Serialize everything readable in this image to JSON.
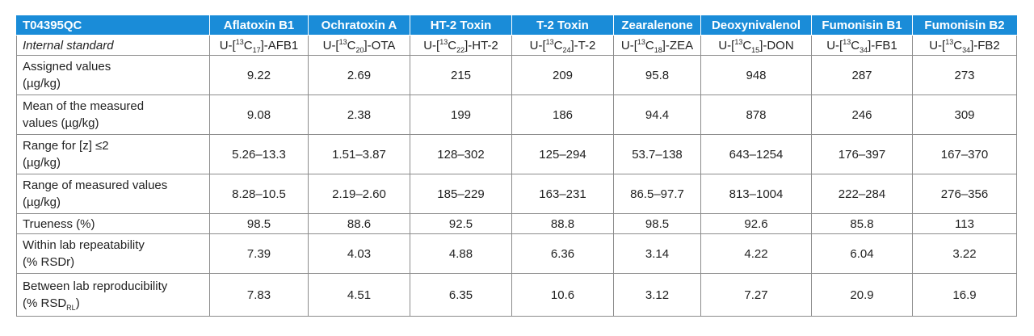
{
  "table": {
    "corner": "T04395QC",
    "columns": [
      "Aflatoxin B1",
      "Ochratoxin A",
      "HT-2 Toxin",
      "T-2 Toxin",
      "Zearalenone",
      "Deoxynivalenol",
      "Fumonisin B1",
      "Fumonisin B2"
    ],
    "internal_standard": {
      "label": "Internal standard",
      "prefix": "U-[",
      "isotope": "13",
      "element": "C",
      "values": [
        {
          "n": "17",
          "suffix": "]-AFB1"
        },
        {
          "n": "20",
          "suffix": "]-OTA"
        },
        {
          "n": "22",
          "suffix": "]-HT-2"
        },
        {
          "n": "24",
          "suffix": "]-T-2"
        },
        {
          "n": "18",
          "suffix": "]-ZEA"
        },
        {
          "n": "15",
          "suffix": "]-DON"
        },
        {
          "n": "34",
          "suffix": "]-FB1"
        },
        {
          "n": "34",
          "suffix": "]-FB2"
        }
      ]
    },
    "rows": [
      {
        "label1": "Assigned values",
        "label2": "(µg/kg)",
        "values": [
          "9.22",
          "2.69",
          "215",
          "209",
          "95.8",
          "948",
          "287",
          "273"
        ]
      },
      {
        "label1": "Mean of the measured",
        "label2": "values (µg/kg)",
        "values": [
          "9.08",
          "2.38",
          "199",
          "186",
          "94.4",
          "878",
          "246",
          "309"
        ]
      },
      {
        "label1": "Range for [z] ≤2",
        "label2": "(µg/kg)",
        "values": [
          "5.26–13.3",
          "1.51–3.87",
          "128–302",
          "125–294",
          "53.7–138",
          "643–1254",
          "176–397",
          "167–370"
        ]
      },
      {
        "label1": "Range of measured values",
        "label2": "(µg/kg)",
        "values": [
          "8.28–10.5",
          "2.19–2.60",
          "185–229",
          "163–231",
          "86.5–97.7",
          "813–1004",
          "222–284",
          "276–356"
        ]
      },
      {
        "label1": "Trueness (%)",
        "label2": "",
        "values": [
          "98.5",
          "88.6",
          "92.5",
          "88.8",
          "98.5",
          "92.6",
          "85.8",
          "113"
        ]
      },
      {
        "label1": "Within lab repeatability",
        "label2": "(% RSDr)",
        "values": [
          "7.39",
          "4.03",
          "4.88",
          "6.36",
          "3.14",
          "4.22",
          "6.04",
          "3.22"
        ]
      },
      {
        "label1": "Between lab reproducibility",
        "label2": "(% RSD",
        "label2_sub": "RL",
        "label2_end": ")",
        "values": [
          "7.83",
          "4.51",
          "6.35",
          "10.6",
          "3.12",
          "7.27",
          "20.9",
          "16.9"
        ]
      }
    ]
  }
}
